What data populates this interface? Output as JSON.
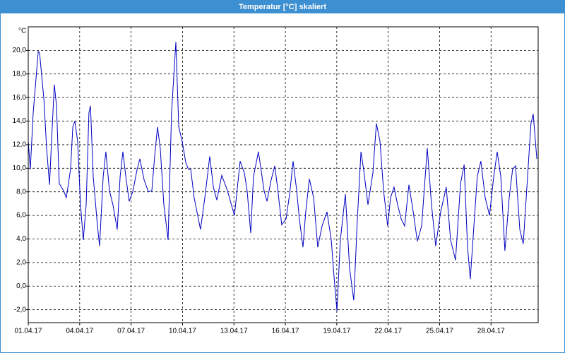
{
  "chart_data": {
    "type": "line",
    "title": "Temperatur [°C] skaliert",
    "y_label": "°C",
    "x": [
      0,
      0.12,
      0.29,
      0.58,
      0.66,
      0.91,
      1.07,
      1.24,
      1.36,
      1.52,
      1.65,
      1.81,
      2.06,
      2.22,
      2.47,
      2.6,
      2.72,
      2.88,
      3.05,
      3.21,
      3.38,
      3.54,
      3.63,
      3.79,
      4.04,
      4.16,
      4.37,
      4.53,
      4.74,
      4.94,
      5.19,
      5.36,
      5.52,
      5.69,
      5.89,
      6.1,
      6.35,
      6.51,
      6.76,
      7.01,
      7.21,
      7.38,
      7.54,
      7.7,
      7.91,
      8.16,
      8.36,
      8.61,
      8.78,
      8.98,
      9.19,
      9.35,
      9.48,
      9.68,
      10.05,
      10.3,
      10.59,
      10.8,
      11.0,
      11.29,
      11.62,
      12.03,
      12.36,
      12.61,
      12.77,
      12.98,
      13.14,
      13.43,
      13.76,
      13.93,
      14.17,
      14.38,
      14.54,
      14.79,
      15.04,
      15.25,
      15.45,
      15.66,
      15.82,
      16.03,
      16.19,
      16.4,
      16.65,
      16.89,
      17.14,
      17.43,
      17.68,
      17.8,
      18.01,
      18.21,
      18.5,
      18.75,
      18.99,
      19.2,
      19.41,
      19.57,
      19.82,
      20.11,
      20.31,
      20.52,
      20.73,
      20.97,
      21.14,
      21.34,
      21.55,
      21.76,
      21.96,
      22.21,
      22.46,
      22.7,
      22.95,
      23.28,
      23.53,
      23.77,
      24.06,
      24.39,
      24.64,
      24.93,
      25.22,
      25.43,
      25.63,
      25.79,
      26.0,
      26.2,
      26.41,
      26.66,
      26.91,
      27.16,
      27.36,
      27.57,
      27.81,
      28.06,
      28.26,
      28.43,
      28.68,
      28.88,
      29.13,
      29.33,
      29.46,
      29.67
    ],
    "series": [
      {
        "color": "#0000c0",
        "values": [
          12.3,
          9.9,
          14.7,
          19.9,
          19.8,
          15.9,
          11.7,
          8.6,
          12.3,
          17.1,
          15.3,
          8.7,
          8.1,
          7.5,
          9.9,
          13.5,
          14.0,
          12.3,
          6.9,
          3.9,
          6.9,
          14.7,
          15.3,
          9.3,
          5.1,
          3.4,
          9.3,
          11.4,
          8.1,
          6.9,
          4.8,
          9.3,
          11.4,
          9.3,
          7.2,
          8.0,
          9.9,
          10.8,
          9.0,
          8.0,
          8.1,
          11.1,
          13.5,
          11.7,
          6.9,
          3.9,
          14.7,
          20.7,
          13.5,
          12.3,
          10.5,
          9.9,
          9.9,
          7.5,
          4.8,
          7.5,
          11.0,
          8.4,
          7.3,
          9.4,
          8.1,
          6.0,
          10.6,
          9.6,
          8.1,
          4.5,
          9.3,
          11.4,
          8.1,
          7.2,
          9.0,
          10.2,
          8.4,
          5.2,
          5.7,
          7.8,
          10.6,
          8.1,
          5.7,
          3.3,
          6.3,
          9.1,
          7.5,
          3.3,
          5.1,
          6.3,
          3.9,
          1.5,
          -2.1,
          3.9,
          7.8,
          1.5,
          -1.2,
          5.7,
          11.4,
          9.9,
          6.9,
          9.6,
          13.8,
          12.3,
          8.1,
          5.1,
          7.5,
          8.4,
          6.9,
          5.7,
          5.1,
          8.6,
          6.3,
          3.8,
          5.1,
          11.7,
          6.9,
          3.4,
          6.3,
          8.4,
          3.9,
          2.2,
          8.7,
          10.3,
          3.3,
          0.6,
          5.1,
          9.3,
          10.6,
          7.5,
          6.0,
          9.3,
          11.4,
          9.3,
          3.0,
          7.5,
          9.9,
          10.2,
          4.8,
          3.6,
          9.3,
          13.8,
          14.6,
          10.8
        ]
      }
    ],
    "xlim": [
      0,
      29.75
    ],
    "xticks": [
      {
        "value": 0,
        "label": "01.04.17"
      },
      {
        "value": 3,
        "label": "04.04.17"
      },
      {
        "value": 6,
        "label": "07.04.17"
      },
      {
        "value": 9,
        "label": "10.04.17"
      },
      {
        "value": 12,
        "label": "13.04.17"
      },
      {
        "value": 15,
        "label": "16.04.17"
      },
      {
        "value": 18,
        "label": "19.04.17"
      },
      {
        "value": 21,
        "label": "22.04.17"
      },
      {
        "value": 24,
        "label": "25.04.17"
      },
      {
        "value": 27,
        "label": "28.04.17"
      }
    ],
    "ylim": [
      -3.1,
      22
    ],
    "yticks": [
      {
        "value": -2,
        "label": "-2,0"
      },
      {
        "value": 0,
        "label": "0,0"
      },
      {
        "value": 2,
        "label": "2,0"
      },
      {
        "value": 4,
        "label": "4,0"
      },
      {
        "value": 6,
        "label": "6,0"
      },
      {
        "value": 8,
        "label": "8,0"
      },
      {
        "value": 10,
        "label": "10,0"
      },
      {
        "value": 12,
        "label": "12,0"
      },
      {
        "value": 14,
        "label": "14,0"
      },
      {
        "value": 16,
        "label": "16,0"
      },
      {
        "value": 18,
        "label": "18,0"
      },
      {
        "value": 20,
        "label": "20,0"
      }
    ],
    "grid": true
  }
}
